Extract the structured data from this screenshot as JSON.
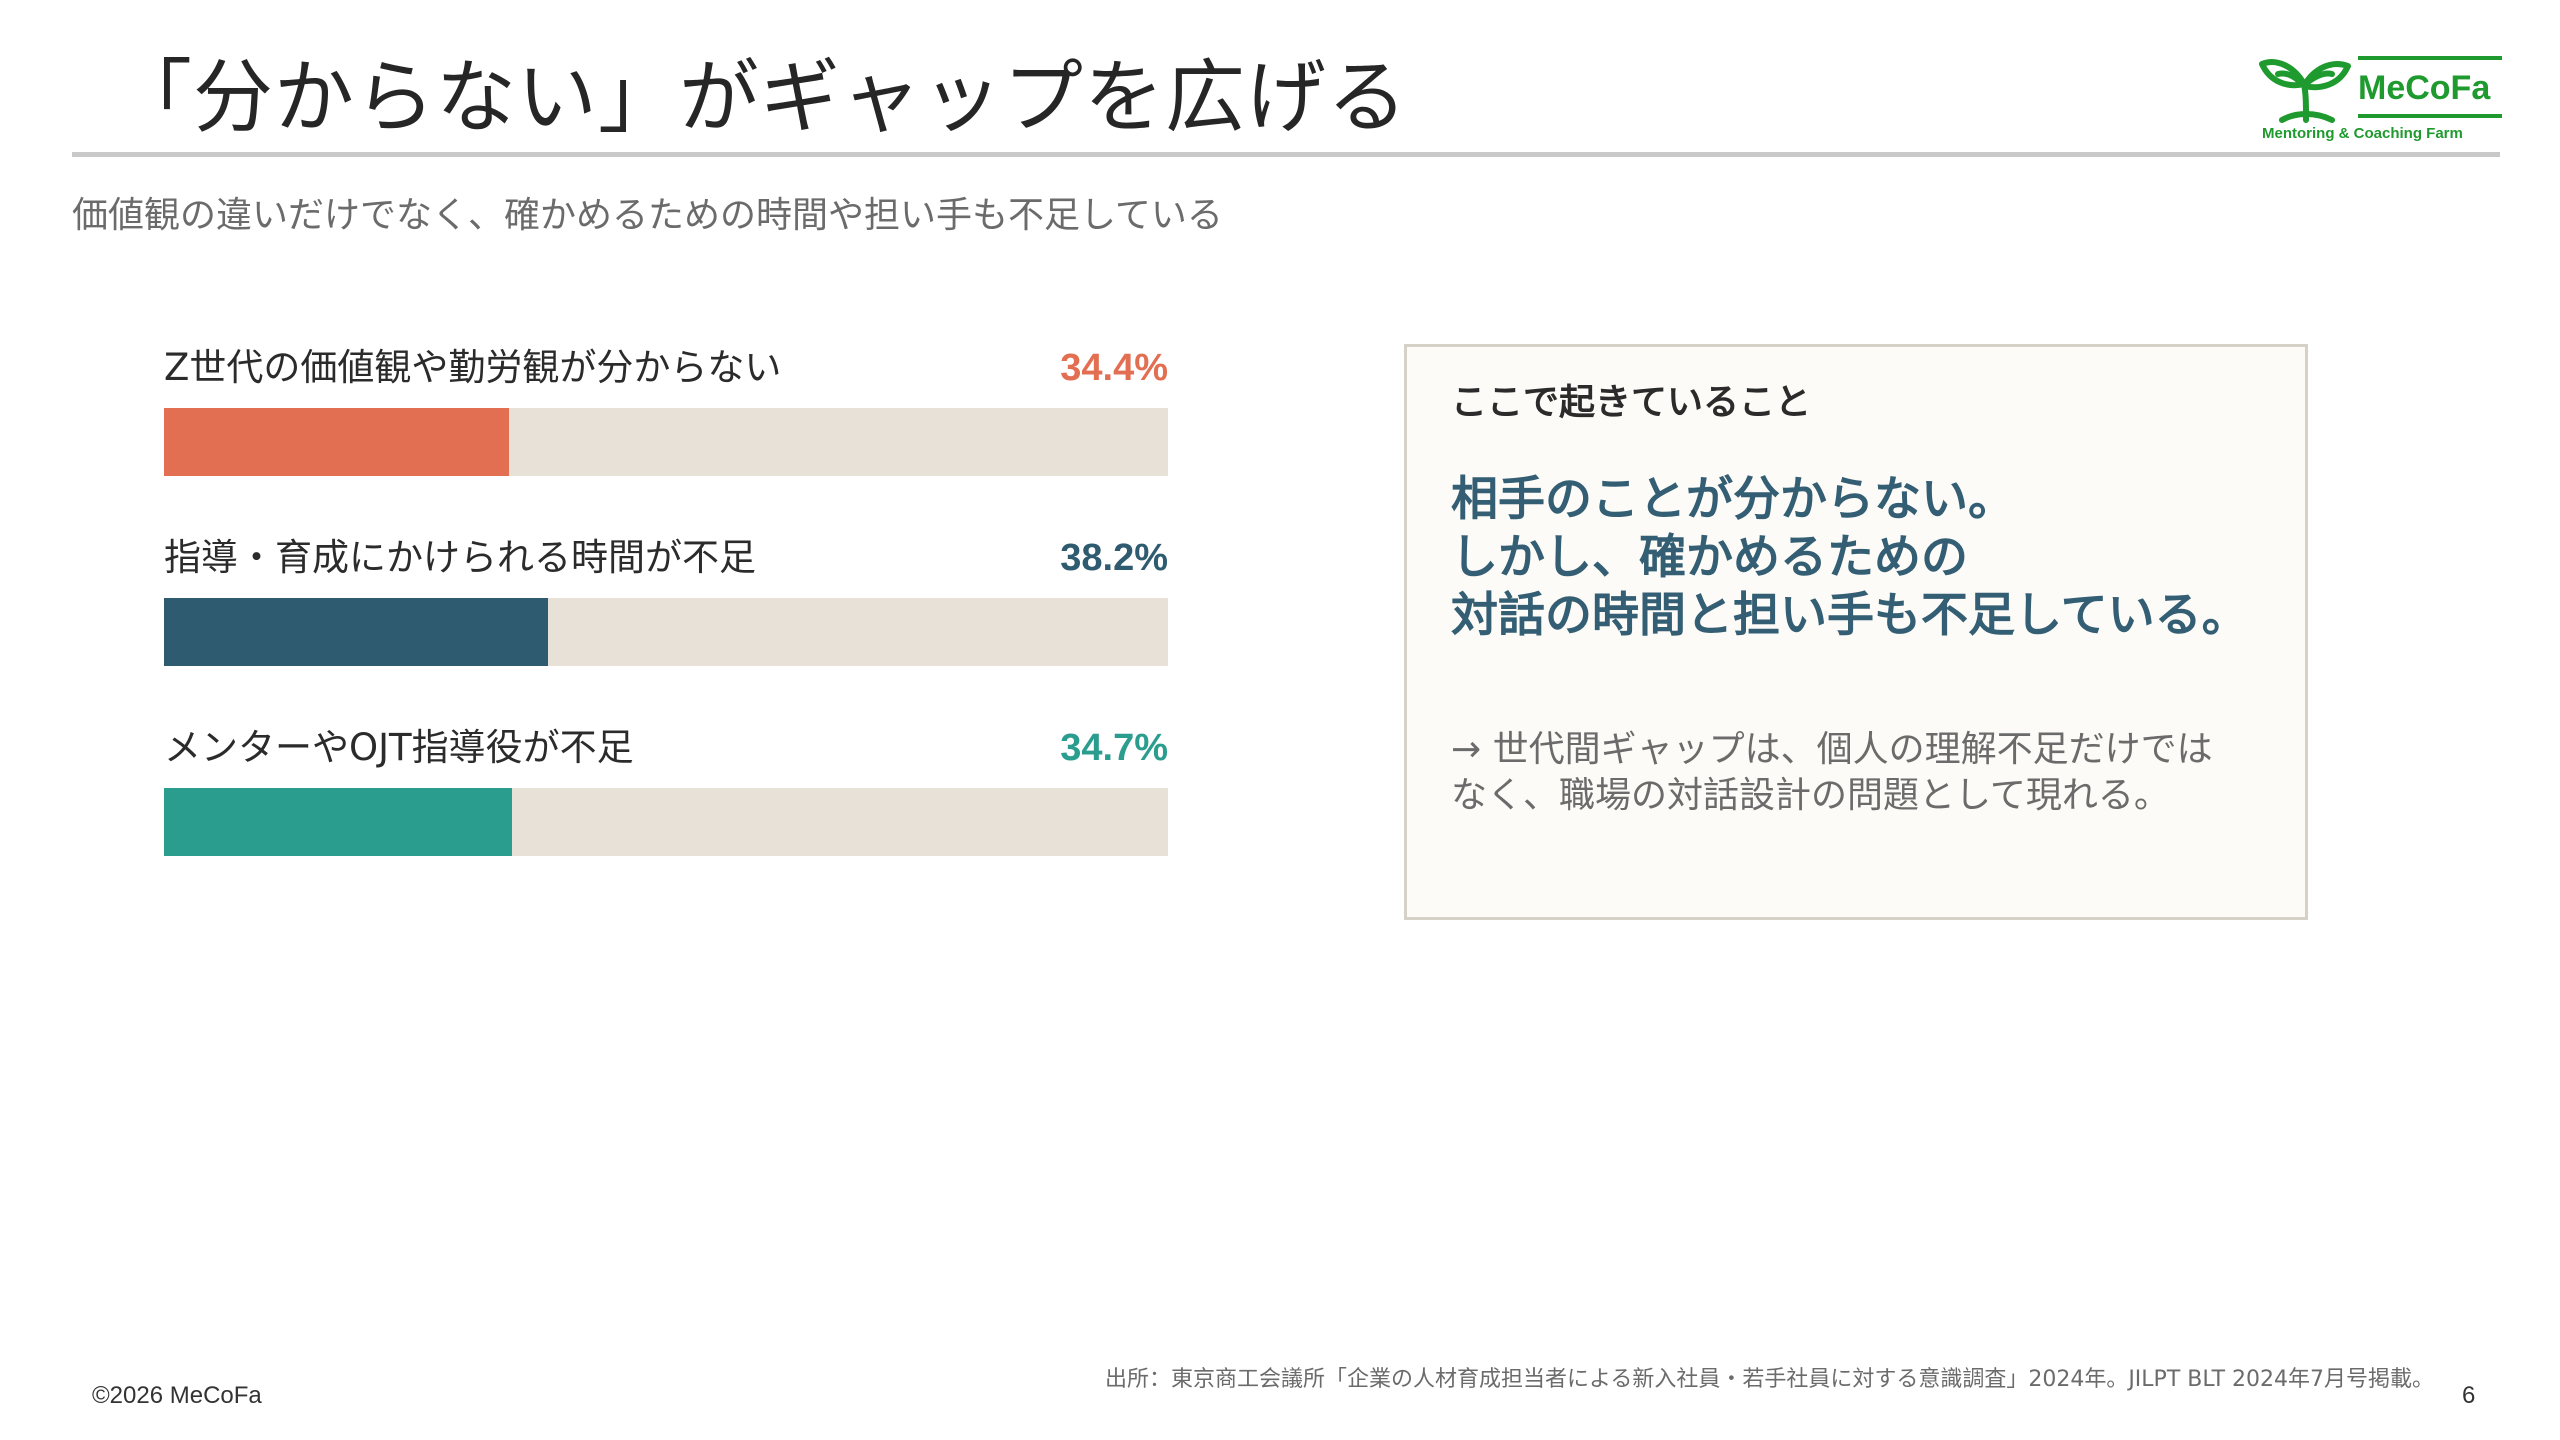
{
  "slide": {
    "title": "「分からない」がギャップを広げる",
    "subtitle": "価値観の違いだけでなく、確かめるための時間や担い手も不足している"
  },
  "logo": {
    "name": "MeCoFa",
    "tagline": "Mentoring & Coaching Farm",
    "color": "#1f9a2e",
    "icon": "sprout-icon"
  },
  "chart_data": {
    "type": "bar",
    "orientation": "horizontal",
    "value_format": "percent",
    "xlim": [
      0,
      100
    ],
    "categories": [
      "Z世代の価値観や勤労観が分からない",
      "指導・育成にかけられる時間が不足",
      "メンターやOJT指導役が不足"
    ],
    "values": [
      34.4,
      38.2,
      34.7
    ],
    "value_labels": [
      "34.4%",
      "38.2%",
      "34.7%"
    ],
    "colors": [
      "#e36f52",
      "#2f5b70",
      "#2a9d8f"
    ],
    "track_color": "#e8e1d7"
  },
  "callout": {
    "heading": "ここで起きていること",
    "main_lines": [
      "相手のことが分からない。",
      "しかし、確かめるための",
      "対話の時間と担い手も不足している。"
    ],
    "note_lines": [
      "→ 世代間ギャップは、個人の理解不足だけでは",
      "なく、職場の対話設計の問題として現れる。"
    ]
  },
  "footer": {
    "copyright": "©2026 MeCoFa",
    "source": "出所：東京商工会議所「企業の人材育成担当者による新入社員・若手社員に対する意識調査」2024年。JILPT BLT 2024年7月号掲載。",
    "page_number": "6"
  }
}
